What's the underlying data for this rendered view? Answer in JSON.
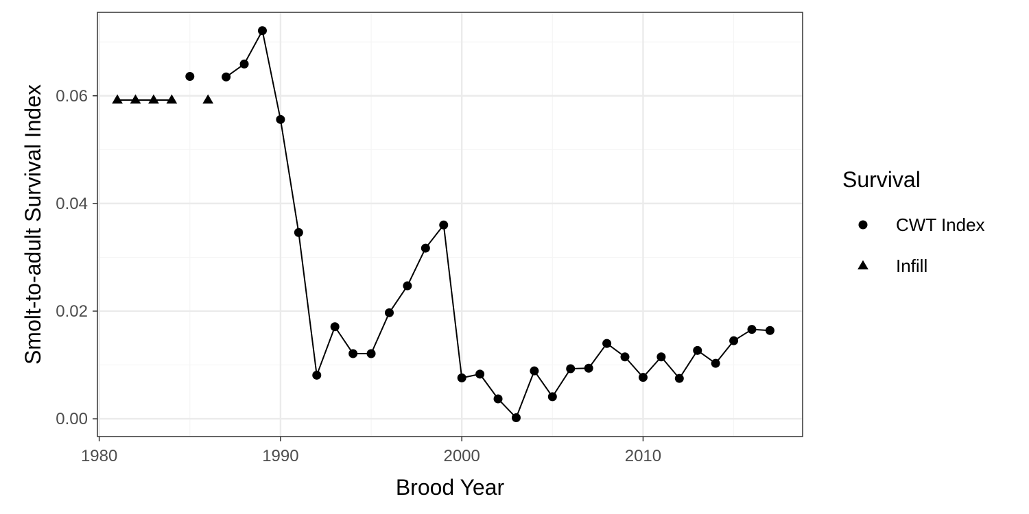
{
  "chart_data": {
    "type": "line",
    "xlabel": "Brood Year",
    "ylabel": "Smolt-to-adult Survival Index",
    "xlim": [
      1979.9,
      2018.8
    ],
    "ylim": [
      -0.0033,
      0.0755
    ],
    "x_ticks": [
      1980,
      1990,
      2000,
      2010
    ],
    "x_tick_labels": [
      "1980",
      "1990",
      "2000",
      "2010"
    ],
    "x_minor_ticks": [
      1985,
      1995,
      2005,
      2015
    ],
    "y_ticks": [
      0.0,
      0.02,
      0.04,
      0.06
    ],
    "y_tick_labels": [
      "0.00",
      "0.02",
      "0.04",
      "0.06"
    ],
    "y_minor_ticks": [
      0.01,
      0.03,
      0.05,
      0.07
    ],
    "grid": true,
    "legend": {
      "title": "Survival",
      "position": "right",
      "entries": [
        {
          "label": "CWT Index",
          "shape": "circle"
        },
        {
          "label": "Infill",
          "shape": "triangle"
        }
      ]
    },
    "line_segments": [
      [
        1981,
        1982,
        1983,
        1984
      ],
      [
        1987,
        1988,
        1989,
        1990,
        1991,
        1992,
        1993,
        1994,
        1995,
        1996,
        1997,
        1998,
        1999,
        2000,
        2001,
        2002,
        2003,
        2004,
        2005,
        2006,
        2007,
        2008,
        2009,
        2010,
        2011,
        2012,
        2013,
        2014,
        2015,
        2016,
        2017
      ]
    ],
    "series": [
      {
        "name": "CWT Index",
        "shape": "circle",
        "x": [
          1985,
          1987,
          1988,
          1989,
          1990,
          1991,
          1992,
          1993,
          1994,
          1995,
          1996,
          1997,
          1998,
          1999,
          2000,
          2001,
          2002,
          2003,
          2004,
          2005,
          2006,
          2007,
          2008,
          2009,
          2010,
          2011,
          2012,
          2013,
          2014,
          2015,
          2016,
          2017
        ],
        "y": [
          0.0636,
          0.0635,
          0.0659,
          0.0721,
          0.0556,
          0.0346,
          0.0081,
          0.0171,
          0.0121,
          0.0121,
          0.0197,
          0.0247,
          0.0317,
          0.036,
          0.0076,
          0.0083,
          0.0037,
          0.0002,
          0.0089,
          0.0041,
          0.0093,
          0.0094,
          0.014,
          0.0115,
          0.0077,
          0.0115,
          0.0075,
          0.0127,
          0.0103,
          0.0145,
          0.0166,
          0.0164
        ]
      },
      {
        "name": "Infill",
        "shape": "triangle",
        "x": [
          1981,
          1982,
          1983,
          1984,
          1986
        ],
        "y": [
          0.0592,
          0.0592,
          0.0592,
          0.0592,
          0.0592
        ]
      }
    ]
  },
  "colors": {
    "background": "#ffffff",
    "panel_border": "#333333",
    "grid_major": "#ebebeb",
    "grid_minor": "#f5f5f5",
    "line": "#000000",
    "points": "#000000",
    "tick_text": "#4d4d4d",
    "title_text": "#000000"
  }
}
